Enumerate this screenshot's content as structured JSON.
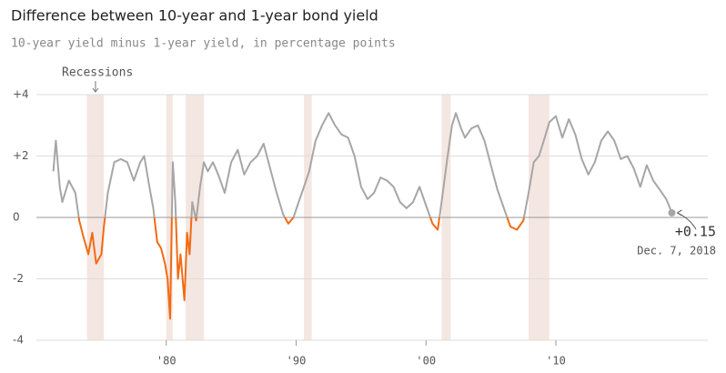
{
  "chart_data": {
    "type": "line",
    "title": "Difference between 10-year and 1-year bond yield",
    "subtitle": "10-year yield minus 1-year yield, in percentage points",
    "recession_label": "Recessions",
    "end_value_label": "+0.15",
    "end_date_label": "Dec. 7, 2018",
    "color": "#a6a6a6",
    "negative_color": "#f26b13",
    "recession_color": "#f4e6e1",
    "grid": true,
    "xlim": [
      1970,
      2021.7
    ],
    "ylim": [
      -4,
      4
    ],
    "xticks": [
      {
        "value": 1980,
        "label": "'80"
      },
      {
        "value": 1990,
        "label": "'90"
      },
      {
        "value": 2000,
        "label": "'00"
      },
      {
        "value": 2010,
        "label": "'10"
      }
    ],
    "yticks": [
      {
        "value": 4,
        "label": "+4"
      },
      {
        "value": 2,
        "label": "+2"
      },
      0,
      -2,
      -4
    ],
    "recessions": [
      [
        1973.9,
        1975.2
      ],
      [
        1980.0,
        1980.5
      ],
      [
        1981.5,
        1982.9
      ],
      [
        1990.6,
        1991.2
      ],
      [
        2001.2,
        2001.9
      ],
      [
        2007.9,
        2009.5
      ]
    ],
    "x": [
      1971.3,
      1971.5,
      1971.8,
      1972.0,
      1972.5,
      1973.0,
      1973.3,
      1973.6,
      1974.0,
      1974.3,
      1974.6,
      1975.0,
      1975.2,
      1975.5,
      1976.0,
      1976.5,
      1977.0,
      1977.5,
      1978.0,
      1978.3,
      1978.7,
      1979.0,
      1979.3,
      1979.6,
      1979.9,
      1980.1,
      1980.3,
      1980.5,
      1980.7,
      1980.9,
      1981.1,
      1981.4,
      1981.6,
      1981.8,
      1982.0,
      1982.3,
      1982.6,
      1982.9,
      1983.2,
      1983.6,
      1984.0,
      1984.5,
      1985.0,
      1985.5,
      1986.0,
      1986.5,
      1987.0,
      1987.5,
      1988.0,
      1988.5,
      1989.0,
      1989.4,
      1989.8,
      1990.2,
      1990.6,
      1991.0,
      1991.5,
      1992.0,
      1992.5,
      1993.0,
      1993.5,
      1994.0,
      1994.5,
      1995.0,
      1995.5,
      1996.0,
      1996.5,
      1997.0,
      1997.5,
      1998.0,
      1998.5,
      1999.0,
      1999.5,
      2000.0,
      2000.5,
      2000.9,
      2001.2,
      2001.6,
      2002.0,
      2002.3,
      2002.7,
      2003.0,
      2003.5,
      2004.0,
      2004.5,
      2005.0,
      2005.5,
      2006.0,
      2006.5,
      2007.0,
      2007.5,
      2007.9,
      2008.3,
      2008.7,
      2009.0,
      2009.5,
      2010.0,
      2010.5,
      2011.0,
      2011.5,
      2012.0,
      2012.5,
      2013.0,
      2013.5,
      2014.0,
      2014.5,
      2015.0,
      2015.5,
      2016.0,
      2016.5,
      2017.0,
      2017.5,
      2018.0,
      2018.5,
      2018.93
    ],
    "values": [
      1.5,
      2.5,
      1.0,
      0.5,
      1.2,
      0.8,
      -0.1,
      -0.6,
      -1.2,
      -0.5,
      -1.5,
      -1.2,
      -0.3,
      0.8,
      1.8,
      1.9,
      1.8,
      1.2,
      1.8,
      2.0,
      1.0,
      0.3,
      -0.8,
      -1.0,
      -1.5,
      -2.0,
      -3.3,
      1.8,
      0.5,
      -2.0,
      -1.2,
      -2.7,
      -0.5,
      -1.2,
      0.5,
      -0.1,
      1.0,
      1.8,
      1.5,
      1.8,
      1.4,
      0.8,
      1.8,
      2.2,
      1.4,
      1.8,
      2.0,
      2.4,
      1.6,
      0.8,
      0.1,
      -0.2,
      0.0,
      0.5,
      1.0,
      1.5,
      2.5,
      3.0,
      3.4,
      3.0,
      2.7,
      2.6,
      2.0,
      1.0,
      0.6,
      0.8,
      1.3,
      1.2,
      1.0,
      0.5,
      0.3,
      0.5,
      1.0,
      0.4,
      -0.2,
      -0.4,
      0.5,
      1.8,
      3.0,
      3.4,
      2.9,
      2.6,
      2.9,
      3.0,
      2.5,
      1.7,
      0.9,
      0.3,
      -0.3,
      -0.4,
      -0.1,
      0.8,
      1.8,
      2.0,
      2.4,
      3.1,
      3.3,
      2.6,
      3.2,
      2.7,
      1.9,
      1.4,
      1.8,
      2.5,
      2.8,
      2.5,
      1.9,
      2.0,
      1.6,
      1.0,
      1.7,
      1.2,
      0.9,
      0.6,
      0.15
    ]
  }
}
